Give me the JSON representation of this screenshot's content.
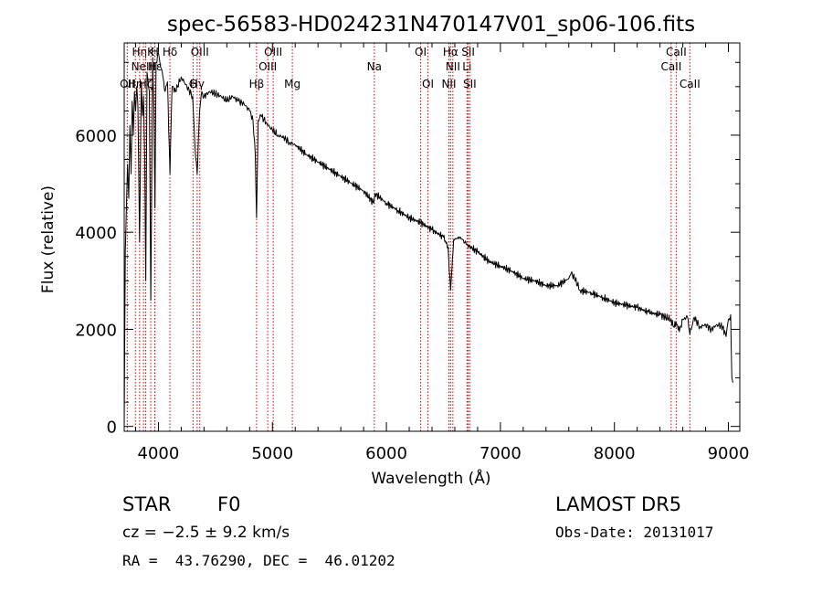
{
  "chart_data": {
    "type": "line",
    "title": "spec-56583-HD024231N470147V01_sp06-106.fits",
    "xlabel": "Wavelength (Å)",
    "ylabel": "Flux (relative)",
    "xlim": [
      3700,
      9100
    ],
    "ylim": [
      -100,
      7900
    ],
    "x_ticks": [
      4000,
      5000,
      6000,
      7000,
      8000,
      9000
    ],
    "y_ticks": [
      0,
      2000,
      4000,
      6000
    ],
    "grid": false,
    "series": [
      {
        "x": [
          3700,
          3710,
          3720,
          3730,
          3740,
          3750,
          3760,
          3770,
          3780,
          3790,
          3800,
          3810,
          3820,
          3835,
          3850,
          3860,
          3870,
          3880,
          3889,
          3900,
          3920,
          3933,
          3950,
          3960,
          3970,
          3980,
          4000,
          4020,
          4040,
          4060,
          4080,
          4101,
          4120,
          4150,
          4200,
          4250,
          4300,
          4320,
          4340,
          4361,
          4380,
          4400,
          4450,
          4500,
          4550,
          4600,
          4650,
          4700,
          4750,
          4800,
          4830,
          4850,
          4861,
          4875,
          4900,
          4950,
          5000,
          5050,
          5100,
          5150,
          5200,
          5300,
          5400,
          5500,
          5600,
          5700,
          5800,
          5890,
          5900,
          6000,
          6100,
          6200,
          6300,
          6400,
          6500,
          6540,
          6563,
          6590,
          6650,
          6700,
          6800,
          6900,
          7000,
          7100,
          7200,
          7300,
          7400,
          7500,
          7600,
          7620,
          7650,
          7700,
          7800,
          7900,
          8000,
          8100,
          8200,
          8300,
          8400,
          8498,
          8520,
          8542,
          8570,
          8600,
          8640,
          8662,
          8700,
          8750,
          8800,
          8850,
          8900,
          8950,
          8980,
          9000,
          9020,
          9030,
          9040
        ],
        "values": [
          0,
          3600,
          4600,
          5400,
          4700,
          6200,
          5200,
          6700,
          6000,
          6900,
          6500,
          7000,
          6600,
          3800,
          7100,
          6400,
          6800,
          5500,
          3000,
          7300,
          6900,
          2600,
          7600,
          6500,
          4500,
          7500,
          7700,
          7400,
          7200,
          6900,
          7100,
          5200,
          7000,
          6900,
          7200,
          7000,
          6800,
          5800,
          5200,
          6500,
          6900,
          6800,
          6900,
          6850,
          6800,
          6700,
          6800,
          6700,
          6650,
          6500,
          6300,
          5600,
          4300,
          6300,
          6400,
          6250,
          6100,
          6000,
          5950,
          5850,
          5800,
          5600,
          5450,
          5300,
          5150,
          5000,
          4850,
          4600,
          4800,
          4600,
          4450,
          4300,
          4200,
          4050,
          3900,
          3700,
          2800,
          3850,
          3900,
          3750,
          3600,
          3400,
          3300,
          3200,
          3050,
          3000,
          2900,
          2900,
          3050,
          3150,
          3050,
          2800,
          2750,
          2650,
          2550,
          2500,
          2450,
          2350,
          2300,
          2200,
          2050,
          2150,
          1950,
          2200,
          2250,
          1900,
          2250,
          2050,
          2100,
          2000,
          2100,
          2050,
          1850,
          2200,
          2300,
          1000,
          900
        ]
      }
    ],
    "lines": [
      {
        "x": 3727,
        "label": "OII",
        "row": 3
      },
      {
        "x": 3798,
        "label": "Hη",
        "row": 3
      },
      {
        "x": 3835,
        "label": "Hη",
        "row": 1
      },
      {
        "x": 3869,
        "label": "NeIII",
        "row": 2
      },
      {
        "x": 3889,
        "label": "Hζ",
        "row": 3
      },
      {
        "x": 3933,
        "label": "K",
        "row": 1
      },
      {
        "x": 3968,
        "label": "H",
        "row": 1
      },
      {
        "x": 3970,
        "label": "Hε",
        "row": 2
      },
      {
        "x": 4101,
        "label": "Hδ",
        "row": 1
      },
      {
        "x": 4304,
        "label": "G",
        "row": 3
      },
      {
        "x": 4340,
        "label": "Hγ",
        "row": 3
      },
      {
        "x": 4363,
        "label": "OIII",
        "row": 1
      },
      {
        "x": 4861,
        "label": "Hβ",
        "row": 3
      },
      {
        "x": 4959,
        "label": "OIII",
        "row": 2
      },
      {
        "x": 5007,
        "label": "OIII",
        "row": 1
      },
      {
        "x": 5175,
        "label": "Mg",
        "row": 3
      },
      {
        "x": 5894,
        "label": "Na",
        "row": 2
      },
      {
        "x": 6300,
        "label": "OI",
        "row": 1
      },
      {
        "x": 6364,
        "label": "OI",
        "row": 3
      },
      {
        "x": 6548,
        "label": "NII",
        "row": 3
      },
      {
        "x": 6563,
        "label": "Hα",
        "row": 1
      },
      {
        "x": 6583,
        "label": "NII",
        "row": 2
      },
      {
        "x": 6707,
        "label": "Li",
        "row": 2
      },
      {
        "x": 6717,
        "label": "SII",
        "row": 1
      },
      {
        "x": 6731,
        "label": "SII",
        "row": 3
      },
      {
        "x": 8498,
        "label": "CaII",
        "row": 2
      },
      {
        "x": 8542,
        "label": "CaII",
        "row": 1
      },
      {
        "x": 8662,
        "label": "CaII",
        "row": 3
      }
    ],
    "colors": {
      "spectrum": "#000000",
      "lines": "#cc0000",
      "axes": "#000000",
      "background": "#ffffff"
    }
  },
  "info": {
    "class": "STAR",
    "subclass": "F0",
    "survey": "LAMOST DR5",
    "cz": "cz = −2.5 ± 9.2 km/s",
    "obs_date": "Obs-Date: 20131017",
    "coords": "RA =  43.76290, DEC =  46.01202"
  }
}
